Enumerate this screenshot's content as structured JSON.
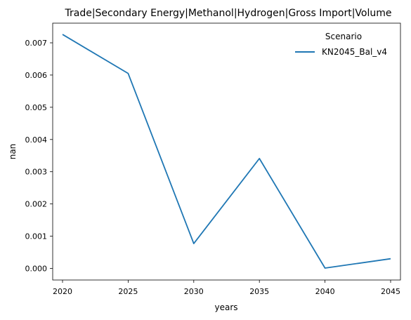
{
  "chart_data": {
    "type": "line",
    "title": "Trade|Secondary Energy|Methanol|Hydrogen|Gross Import|Volume",
    "xlabel": "years",
    "ylabel": "nan",
    "x": [
      2020,
      2025,
      2030,
      2035,
      2040,
      2045
    ],
    "x_tick_labels": [
      "2020",
      "2025",
      "2030",
      "2035",
      "2040",
      "2045"
    ],
    "y_ticks": [
      0.0,
      0.001,
      0.002,
      0.003,
      0.004,
      0.005,
      0.006,
      0.007
    ],
    "y_tick_labels": [
      "0.000",
      "0.001",
      "0.002",
      "0.003",
      "0.004",
      "0.005",
      "0.006",
      "0.007"
    ],
    "xlim": [
      2019.25,
      2045.75
    ],
    "ylim": [
      -0.00036,
      0.00761
    ],
    "grid": false,
    "legend": {
      "title": "Scenario",
      "placement": "top-right"
    },
    "series": [
      {
        "name": "KN2045_Bal_v4",
        "color": "#1f77b4",
        "values": [
          0.00726,
          0.00605,
          0.00077,
          0.00341,
          1e-05,
          0.0003
        ]
      }
    ]
  }
}
